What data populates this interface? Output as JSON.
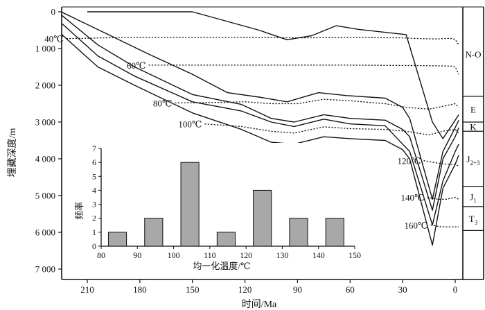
{
  "chart_data": [
    {
      "type": "line",
      "xlabel": "时间/Ma",
      "ylabel": "埋藏深度/m",
      "x_ticks": [
        210,
        180,
        150,
        120,
        90,
        60,
        30,
        0
      ],
      "y_ticks": [
        0,
        1000,
        2000,
        3000,
        4000,
        5000,
        6000,
        7000
      ],
      "x_ticks_text": [
        "210",
        "180",
        "150",
        "120",
        "90",
        "60",
        "30",
        "0"
      ],
      "y_ticks_text": [
        "0",
        "1 000",
        "2 000",
        "3 000",
        "4 000",
        "5 000",
        "6 000",
        "7 000"
      ],
      "xlim": [
        225,
        -12
      ],
      "ylim": [
        0,
        7200
      ],
      "x_reversed": true,
      "burial_curves": [
        {
          "points": [
            [
              210,
              0
            ],
            [
              180,
              0
            ],
            [
              150,
              0
            ],
            [
              112,
              500
            ],
            [
              96,
              760
            ],
            [
              82,
              650
            ],
            [
              68,
              380
            ],
            [
              55,
              480
            ],
            [
              32,
              600
            ],
            [
              28,
              620
            ],
            [
              13,
              3000
            ],
            [
              7,
              3450
            ],
            [
              0,
              2950
            ],
            [
              -2,
              2800
            ]
          ]
        },
        {
          "points": [
            [
              225,
              0
            ],
            [
              198,
              620
            ],
            [
              175,
              1150
            ],
            [
              150,
              1700
            ],
            [
              130,
              2200
            ],
            [
              112,
              2320
            ],
            [
              96,
              2450
            ],
            [
              78,
              2200
            ],
            [
              62,
              2280
            ],
            [
              40,
              2350
            ],
            [
              30,
              2600
            ],
            [
              26,
              2900
            ],
            [
              13,
              5100
            ],
            [
              7,
              3800
            ],
            [
              0,
              3150
            ],
            [
              -2,
              2950
            ]
          ]
        },
        {
          "points": [
            [
              225,
              80
            ],
            [
              204,
              900
            ],
            [
              183,
              1500
            ],
            [
              150,
              2250
            ],
            [
              122,
              2520
            ],
            [
              105,
              2900
            ],
            [
              92,
              3000
            ],
            [
              75,
              2800
            ],
            [
              60,
              2900
            ],
            [
              40,
              2950
            ],
            [
              30,
              3200
            ],
            [
              26,
              3400
            ],
            [
              13,
              5400
            ],
            [
              7,
              4000
            ],
            [
              0,
              3400
            ],
            [
              -2,
              3150
            ]
          ]
        },
        {
          "points": [
            [
              225,
              300
            ],
            [
              204,
              1200
            ],
            [
              183,
              1750
            ],
            [
              150,
              2450
            ],
            [
              122,
              2700
            ],
            [
              105,
              3000
            ],
            [
              92,
              3120
            ],
            [
              75,
              2920
            ],
            [
              60,
              3050
            ],
            [
              40,
              3100
            ],
            [
              30,
              3600
            ],
            [
              26,
              3800
            ],
            [
              13,
              5800
            ],
            [
              7,
              4600
            ],
            [
              0,
              3800
            ],
            [
              -2,
              3600
            ]
          ]
        },
        {
          "points": [
            [
              225,
              600
            ],
            [
              204,
              1500
            ],
            [
              183,
              2000
            ],
            [
              150,
              2750
            ],
            [
              122,
              3200
            ],
            [
              105,
              3550
            ],
            [
              92,
              3600
            ],
            [
              75,
              3400
            ],
            [
              60,
              3450
            ],
            [
              40,
              3500
            ],
            [
              30,
              3750
            ],
            [
              26,
              4000
            ],
            [
              13,
              6350
            ],
            [
              7,
              4800
            ],
            [
              0,
              4150
            ],
            [
              -2,
              3900
            ]
          ]
        }
      ],
      "isotherms": [
        {
          "label": "40℃",
          "points": [
            [
              222,
              730
            ],
            [
              190,
              700
            ],
            [
              160,
              700
            ],
            [
              120,
              700
            ],
            [
              90,
              710
            ],
            [
              60,
              700
            ],
            [
              30,
              710
            ],
            [
              20,
              730
            ],
            [
              10,
              740
            ],
            [
              3,
              720
            ],
            [
              0,
              750
            ],
            [
              -2,
              900
            ]
          ]
        },
        {
          "label": "60℃",
          "points": [
            [
              175,
              1450
            ],
            [
              150,
              1450
            ],
            [
              120,
              1450
            ],
            [
              90,
              1450
            ],
            [
              60,
              1450
            ],
            [
              30,
              1460
            ],
            [
              10,
              1470
            ],
            [
              2,
              1480
            ],
            [
              0,
              1500
            ],
            [
              -2,
              1700
            ]
          ]
        },
        {
          "label": "80℃",
          "points": [
            [
              160,
              2480
            ],
            [
              140,
              2470
            ],
            [
              120,
              2450
            ],
            [
              105,
              2500
            ],
            [
              90,
              2500
            ],
            [
              75,
              2380
            ],
            [
              60,
              2420
            ],
            [
              40,
              2500
            ],
            [
              28,
              2600
            ],
            [
              15,
              2650
            ],
            [
              5,
              2550
            ],
            [
              0,
              2500
            ],
            [
              -2,
              2600
            ]
          ]
        },
        {
          "label": "100℃",
          "points": [
            [
              143,
              3050
            ],
            [
              122,
              3120
            ],
            [
              105,
              3250
            ],
            [
              92,
              3300
            ],
            [
              75,
              3130
            ],
            [
              60,
              3180
            ],
            [
              40,
              3200
            ],
            [
              28,
              3250
            ],
            [
              15,
              3350
            ],
            [
              7,
              3250
            ],
            [
              0,
              3200
            ],
            [
              -2,
              3300
            ]
          ]
        },
        {
          "label": "120℃",
          "points": [
            [
              18,
              4050
            ],
            [
              12,
              4100
            ],
            [
              5,
              4150
            ],
            [
              0,
              4150
            ],
            [
              -2,
              4200
            ]
          ]
        },
        {
          "label": "140℃",
          "points": [
            [
              16,
              5050
            ],
            [
              10,
              5100
            ],
            [
              5,
              5100
            ],
            [
              0,
              5050
            ],
            [
              -2,
              5100
            ]
          ]
        },
        {
          "label": "160℃",
          "points": [
            [
              14,
              5800
            ],
            [
              8,
              5850
            ],
            [
              3,
              5850
            ],
            [
              0,
              5850
            ],
            [
              -2,
              5850
            ]
          ]
        }
      ],
      "strata": [
        {
          "label": "N-O",
          "top": 0,
          "bottom": 2300
        },
        {
          "label": "E",
          "top": 2300,
          "bottom": 3000
        },
        {
          "label": "K",
          "top": 3000,
          "bottom": 3250
        },
        {
          "label": "J",
          "subscript": "2+3",
          "top": 3250,
          "bottom": 4750
        },
        {
          "label": "J",
          "subscript": "1",
          "top": 4750,
          "bottom": 5300
        },
        {
          "label": "T",
          "subscript": "3",
          "top": 5300,
          "bottom": 5950
        }
      ]
    },
    {
      "type": "bar",
      "xlabel": "均一化温度/℃",
      "ylabel": "频率",
      "x_ticks": [
        80,
        90,
        100,
        110,
        120,
        130,
        140,
        150
      ],
      "y_ticks": [
        0,
        1,
        2,
        3,
        4,
        5,
        6,
        7
      ],
      "xlim": [
        80,
        150
      ],
      "ylim": [
        0,
        7
      ],
      "bins": [
        {
          "x0": 82,
          "x1": 87,
          "value": 1
        },
        {
          "x0": 92,
          "x1": 97,
          "value": 2
        },
        {
          "x0": 102,
          "x1": 107,
          "value": 6
        },
        {
          "x0": 112,
          "x1": 117,
          "value": 1
        },
        {
          "x0": 122,
          "x1": 127,
          "value": 4
        },
        {
          "x0": 132,
          "x1": 137,
          "value": 2
        },
        {
          "x0": 142,
          "x1": 147,
          "value": 2
        }
      ]
    }
  ]
}
